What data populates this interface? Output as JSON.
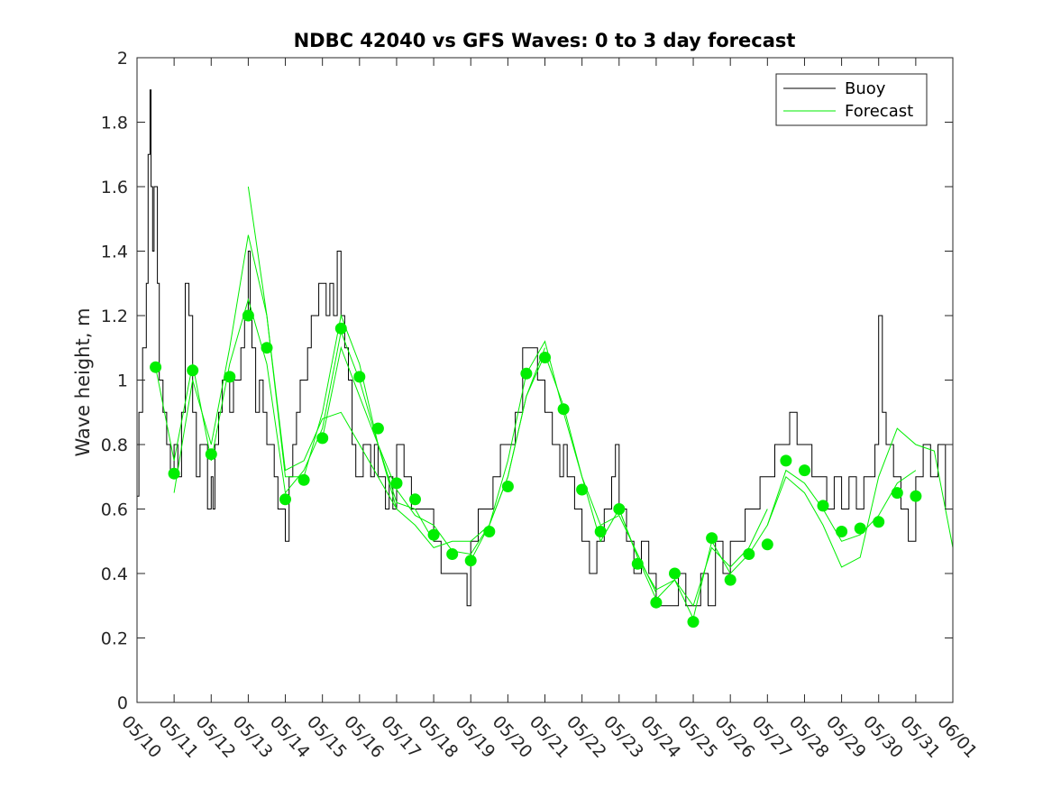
{
  "chart_data": {
    "type": "line",
    "title": "NDBC 42040 vs GFS Waves: 0 to 3 day forecast",
    "xlabel": "",
    "ylabel": "Wave height, m",
    "ylim": [
      0,
      2
    ],
    "yticks": [
      0,
      0.2,
      0.4,
      0.6,
      0.8,
      1,
      1.2,
      1.4,
      1.6,
      1.8,
      2
    ],
    "ytick_labels": [
      "0",
      "0.2",
      "0.4",
      "0.6",
      "0.8",
      "1",
      "1.2",
      "1.4",
      "1.6",
      "1.8",
      "2"
    ],
    "x_categories": [
      "05/10",
      "05/11",
      "05/12",
      "05/13",
      "05/14",
      "05/15",
      "05/16",
      "05/17",
      "05/18",
      "05/19",
      "05/20",
      "05/21",
      "05/22",
      "05/23",
      "05/24",
      "05/25",
      "05/26",
      "05/27",
      "05/28",
      "05/29",
      "05/30",
      "05/31",
      "06/01"
    ],
    "xlim_days": [
      0,
      22
    ],
    "legend": {
      "position": "top-right",
      "entries": [
        "Buoy",
        "Forecast"
      ]
    },
    "colors": {
      "buoy": "#000000",
      "forecast": "#00ee00",
      "markers": "#00ee00"
    },
    "series": [
      {
        "name": "Buoy",
        "color": "#000000",
        "x_days": [
          0,
          0.05,
          0.15,
          0.25,
          0.3,
          0.35,
          0.38,
          0.42,
          0.46,
          0.5,
          0.55,
          0.6,
          0.7,
          0.8,
          0.9,
          1,
          1.1,
          1.2,
          1.3,
          1.4,
          1.45,
          1.5,
          1.6,
          1.7,
          1.8,
          1.9,
          2,
          2.05,
          2.1,
          2.2,
          2.3,
          2.4,
          2.5,
          2.6,
          2.7,
          2.8,
          2.9,
          3,
          3.05,
          3.1,
          3.2,
          3.3,
          3.4,
          3.5,
          3.6,
          3.7,
          3.8,
          3.9,
          4,
          4.1,
          4.2,
          4.25,
          4.3,
          4.4,
          4.5,
          4.6,
          4.7,
          4.8,
          4.9,
          5,
          5.1,
          5.2,
          5.3,
          5.4,
          5.5,
          5.6,
          5.7,
          5.8,
          5.9,
          5.95,
          6,
          6.1,
          6.2,
          6.3,
          6.4,
          6.5,
          6.6,
          6.7,
          6.8,
          6.9,
          7,
          7.2,
          7.4,
          7.6,
          7.8,
          8,
          8.2,
          8.4,
          8.6,
          8.8,
          8.9,
          9,
          9.1,
          9.2,
          9.4,
          9.6,
          9.8,
          10,
          10.2,
          10.4,
          10.6,
          10.8,
          11,
          11.2,
          11.4,
          11.5,
          11.6,
          11.8,
          12,
          12.2,
          12.4,
          12.6,
          12.8,
          12.9,
          13,
          13.2,
          13.4,
          13.6,
          13.8,
          14,
          14.2,
          14.4,
          14.6,
          14.8,
          15,
          15.2,
          15.4,
          15.6,
          15.8,
          16,
          16.2,
          16.4,
          16.6,
          16.8,
          17,
          17.2,
          17.4,
          17.6,
          17.8,
          18,
          18.2,
          18.4,
          18.6,
          18.8,
          19,
          19.2,
          19.4,
          19.6,
          19.8,
          19.9,
          20,
          20.1,
          20.2,
          20.4,
          20.6,
          20.8,
          21,
          21.2,
          21.4,
          21.6,
          21.8,
          22
        ],
        "y": [
          0.64,
          0.9,
          1.1,
          1.3,
          1.7,
          1.9,
          1.6,
          1.4,
          1.6,
          1.6,
          1.3,
          1.0,
          0.9,
          0.8,
          0.7,
          0.8,
          0.7,
          0.9,
          1.3,
          1.2,
          1.2,
          0.9,
          0.7,
          0.8,
          0.8,
          0.6,
          0.7,
          0.6,
          0.8,
          0.9,
          1.0,
          1.0,
          0.9,
          1.0,
          1.0,
          1.1,
          1.2,
          1.4,
          1.2,
          1.1,
          0.9,
          1.0,
          0.9,
          0.8,
          0.8,
          0.7,
          0.6,
          0.6,
          0.5,
          0.7,
          0.8,
          0.8,
          0.9,
          1.0,
          1.0,
          1.1,
          1.2,
          1.2,
          1.3,
          1.3,
          1.2,
          1.3,
          1.2,
          1.4,
          1.2,
          1.1,
          1.0,
          0.8,
          0.7,
          0.7,
          0.7,
          0.8,
          0.8,
          0.7,
          0.8,
          0.7,
          0.7,
          0.6,
          0.7,
          0.6,
          0.8,
          0.7,
          0.6,
          0.6,
          0.6,
          0.5,
          0.4,
          0.4,
          0.4,
          0.4,
          0.3,
          0.5,
          0.5,
          0.6,
          0.6,
          0.7,
          0.8,
          0.8,
          0.9,
          1.1,
          1.1,
          1.0,
          0.9,
          0.8,
          0.7,
          0.8,
          0.7,
          0.6,
          0.5,
          0.4,
          0.5,
          0.6,
          0.7,
          0.8,
          0.6,
          0.5,
          0.4,
          0.5,
          0.4,
          0.3,
          0.3,
          0.3,
          0.4,
          0.3,
          0.3,
          0.4,
          0.3,
          0.5,
          0.4,
          0.5,
          0.5,
          0.6,
          0.6,
          0.7,
          0.7,
          0.8,
          0.8,
          0.9,
          0.8,
          0.8,
          0.7,
          0.7,
          0.6,
          0.7,
          0.6,
          0.7,
          0.6,
          0.7,
          0.7,
          0.8,
          1.2,
          0.9,
          0.8,
          0.7,
          0.6,
          0.5,
          0.7,
          0.8,
          0.7,
          0.8,
          0.6,
          0.5
        ]
      },
      {
        "name": "Forecast",
        "color": "#00ee00",
        "runs": [
          {
            "x_days": [
              0.5,
              1,
              1.5,
              2,
              2.5,
              3,
              3.5,
              4,
              4.5,
              5,
              5.5,
              6,
              6.5,
              7
            ],
            "y": [
              1.04,
              0.75,
              1.05,
              0.75,
              1.05,
              1.25,
              1.05,
              0.65,
              0.72,
              0.85,
              1.15,
              1.0,
              0.8,
              0.6
            ]
          },
          {
            "x_days": [
              1,
              1.5,
              2,
              2.5,
              3,
              3.5,
              4,
              4.5,
              5,
              5.5,
              6,
              6.5,
              7,
              7.5,
              8
            ],
            "y": [
              0.65,
              1.0,
              0.8,
              1.1,
              1.45,
              1.2,
              0.7,
              0.7,
              0.9,
              1.2,
              1.05,
              0.8,
              0.62,
              0.6,
              0.5
            ]
          },
          {
            "x_days": [
              3,
              3.5,
              4,
              4.5,
              5,
              5.5,
              6,
              6.5,
              7,
              7.5,
              8,
              8.5,
              9,
              9.5,
              10,
              10.5,
              11
            ],
            "y": [
              1.6,
              1.2,
              0.72,
              0.75,
              0.88,
              0.9,
              0.8,
              0.7,
              0.6,
              0.55,
              0.48,
              0.5,
              0.5,
              0.55,
              0.7,
              0.95,
              1.1
            ]
          },
          {
            "x_days": [
              5,
              5.5,
              6,
              6.5,
              7,
              7.5,
              8,
              8.5,
              9,
              9.5,
              10,
              10.5,
              11,
              11.5,
              12,
              12.5,
              13,
              13.5,
              14
            ],
            "y": [
              0.82,
              1.1,
              0.95,
              0.8,
              0.66,
              0.58,
              0.55,
              0.47,
              0.46,
              0.55,
              0.75,
              1.02,
              1.12,
              0.9,
              0.7,
              0.55,
              0.58,
              0.46,
              0.34
            ]
          },
          {
            "x_days": [
              9,
              9.5,
              10,
              10.5,
              11,
              11.5,
              12,
              12.5,
              13,
              13.5,
              14,
              14.5,
              15,
              15.5,
              16,
              16.5,
              17
            ],
            "y": [
              0.44,
              0.55,
              0.7,
              0.95,
              1.08,
              0.92,
              0.7,
              0.5,
              0.6,
              0.45,
              0.35,
              0.38,
              0.3,
              0.48,
              0.42,
              0.48,
              0.6
            ]
          },
          {
            "x_days": [
              13,
              13.5,
              14,
              14.5,
              15,
              15.5,
              16,
              16.5,
              17,
              17.5,
              18,
              18.5,
              19,
              19.5,
              20,
              20.5,
              21
            ],
            "y": [
              0.6,
              0.45,
              0.32,
              0.38,
              0.26,
              0.5,
              0.4,
              0.46,
              0.55,
              0.72,
              0.68,
              0.6,
              0.5,
              0.52,
              0.58,
              0.68,
              0.72
            ]
          },
          {
            "x_days": [
              17,
              17.5,
              18,
              18.5,
              19,
              19.5,
              20,
              20.5,
              21,
              21.5,
              22
            ],
            "y": [
              0.55,
              0.7,
              0.65,
              0.55,
              0.42,
              0.45,
              0.7,
              0.85,
              0.8,
              0.78,
              0.48
            ]
          }
        ]
      }
    ],
    "forecast_markers": {
      "x_days": [
        0.5,
        1,
        1.5,
        2,
        2.5,
        3,
        3.5,
        4,
        4.5,
        5,
        5.5,
        6,
        6.5,
        7,
        7.5,
        8,
        8.5,
        9,
        9.5,
        10,
        10.5,
        11,
        11.5,
        12,
        12.5,
        13,
        13.5,
        14,
        14.5,
        15,
        15.5,
        16,
        16.5,
        17,
        17.5,
        18,
        18.5,
        19,
        19.5,
        20,
        20.5,
        21
      ],
      "y": [
        1.04,
        0.71,
        1.03,
        0.77,
        1.01,
        1.2,
        1.1,
        0.63,
        0.69,
        0.82,
        1.16,
        1.01,
        0.85,
        0.68,
        0.63,
        0.52,
        0.46,
        0.44,
        0.53,
        0.67,
        1.02,
        1.07,
        0.91,
        0.66,
        0.53,
        0.6,
        0.43,
        0.31,
        0.4,
        0.25,
        0.51,
        0.38,
        0.46,
        0.49,
        0.75,
        0.72,
        0.61,
        0.53,
        0.54,
        0.56,
        0.65,
        0.64
      ]
    }
  }
}
